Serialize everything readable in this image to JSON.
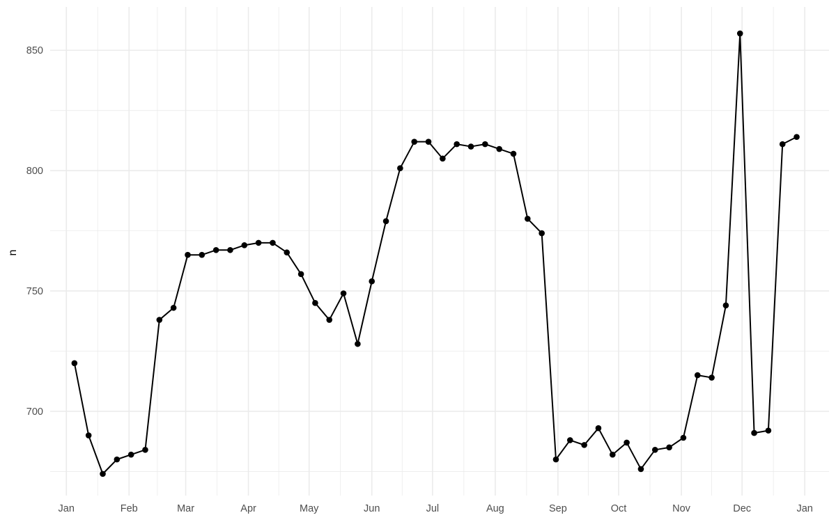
{
  "chart_data": {
    "type": "line",
    "title": "",
    "xlabel": "",
    "ylabel": "n",
    "grid": true,
    "legend": "none",
    "colors": {
      "line": "#000000",
      "point": "#000000",
      "grid": "#ebebeb",
      "tick_text": "#4d4d4d"
    },
    "x_ticks": [
      "Jan",
      "Feb",
      "Mar",
      "Apr",
      "May",
      "Jun",
      "Jul",
      "Aug",
      "Sep",
      "Oct",
      "Nov",
      "Dec",
      "Jan"
    ],
    "x_tick_dates": [
      "2019-01-01",
      "2019-02-01",
      "2019-03-01",
      "2019-04-01",
      "2019-05-01",
      "2019-06-01",
      "2019-07-01",
      "2019-08-01",
      "2019-09-01",
      "2019-10-01",
      "2019-11-01",
      "2019-12-01",
      "2020-01-01"
    ],
    "y_ticks": [
      700,
      750,
      800,
      850
    ],
    "ylim": [
      665,
      868
    ],
    "xlim": [
      "2018-12-24",
      "2020-01-13"
    ],
    "series": [
      {
        "x": [
          "2019-01-05",
          "2019-01-12",
          "2019-01-19",
          "2019-01-26",
          "2019-02-02",
          "2019-02-09",
          "2019-02-16",
          "2019-02-23",
          "2019-03-02",
          "2019-03-09",
          "2019-03-16",
          "2019-03-23",
          "2019-03-30",
          "2019-04-06",
          "2019-04-13",
          "2019-04-20",
          "2019-04-27",
          "2019-05-04",
          "2019-05-11",
          "2019-05-18",
          "2019-05-25",
          "2019-06-01",
          "2019-06-08",
          "2019-06-15",
          "2019-06-22",
          "2019-06-29",
          "2019-07-06",
          "2019-07-13",
          "2019-07-20",
          "2019-07-27",
          "2019-08-03",
          "2019-08-10",
          "2019-08-17",
          "2019-08-24",
          "2019-08-31",
          "2019-09-07",
          "2019-09-14",
          "2019-09-21",
          "2019-09-28",
          "2019-10-05",
          "2019-10-12",
          "2019-10-19",
          "2019-10-26",
          "2019-11-02",
          "2019-11-09",
          "2019-11-16",
          "2019-11-23",
          "2019-11-30",
          "2019-12-07",
          "2019-12-14",
          "2019-12-21",
          "2019-12-28"
        ],
        "y": [
          720,
          690,
          674,
          680,
          682,
          684,
          738,
          743,
          765,
          765,
          767,
          767,
          769,
          770,
          770,
          766,
          757,
          745,
          738,
          749,
          728,
          754,
          779,
          801,
          812,
          812,
          805,
          811,
          810,
          811,
          809,
          807,
          780,
          774,
          680,
          688,
          686,
          693,
          682,
          687,
          676,
          684,
          685,
          689,
          715,
          714,
          744,
          857,
          691,
          692,
          811,
          814
        ]
      }
    ]
  }
}
